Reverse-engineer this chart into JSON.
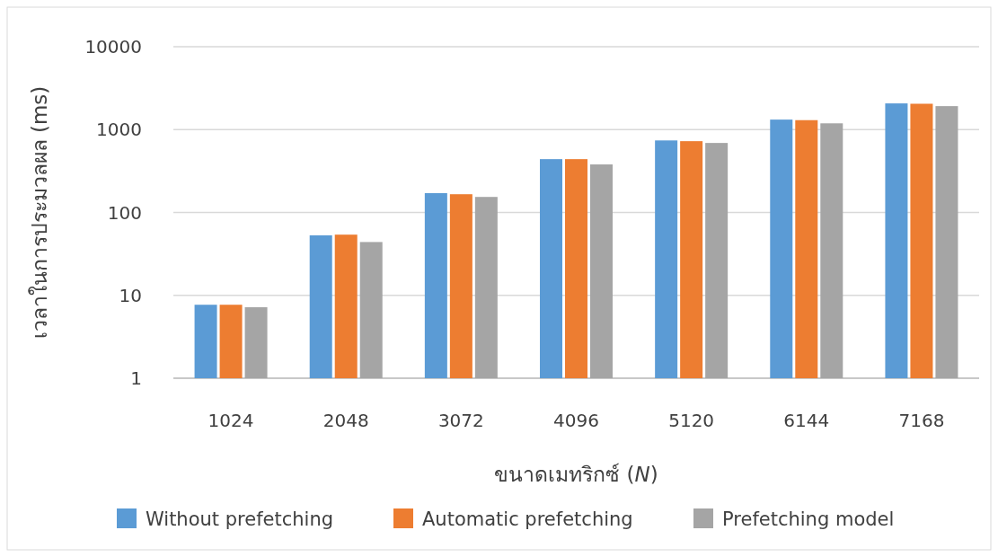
{
  "chart_data": {
    "type": "bar",
    "xlabel": "ขนาดเมทริกซ์ (*N*)",
    "ylabel": "เวลาในการประมวลผล (ms)",
    "categories": [
      "1024",
      "2048",
      "3072",
      "4096",
      "5120",
      "6144",
      "7168"
    ],
    "series": [
      {
        "name": "Without prefetching",
        "color": "#5b9bd5",
        "values": [
          7.7,
          53,
          171,
          440,
          740,
          1320,
          2070
        ]
      },
      {
        "name": "Automatic prefetching",
        "color": "#ed7d31",
        "values": [
          7.7,
          54,
          166,
          440,
          725,
          1300,
          2050
        ]
      },
      {
        "name": "Prefetching model",
        "color": "#a5a5a5",
        "values": [
          7.2,
          44,
          154,
          380,
          690,
          1190,
          1920
        ]
      }
    ],
    "log": "y",
    "ylim": [
      1,
      10000
    ],
    "yticks": [
      1,
      10,
      100,
      1000,
      10000
    ],
    "grid": "y",
    "legend": "bottom"
  }
}
